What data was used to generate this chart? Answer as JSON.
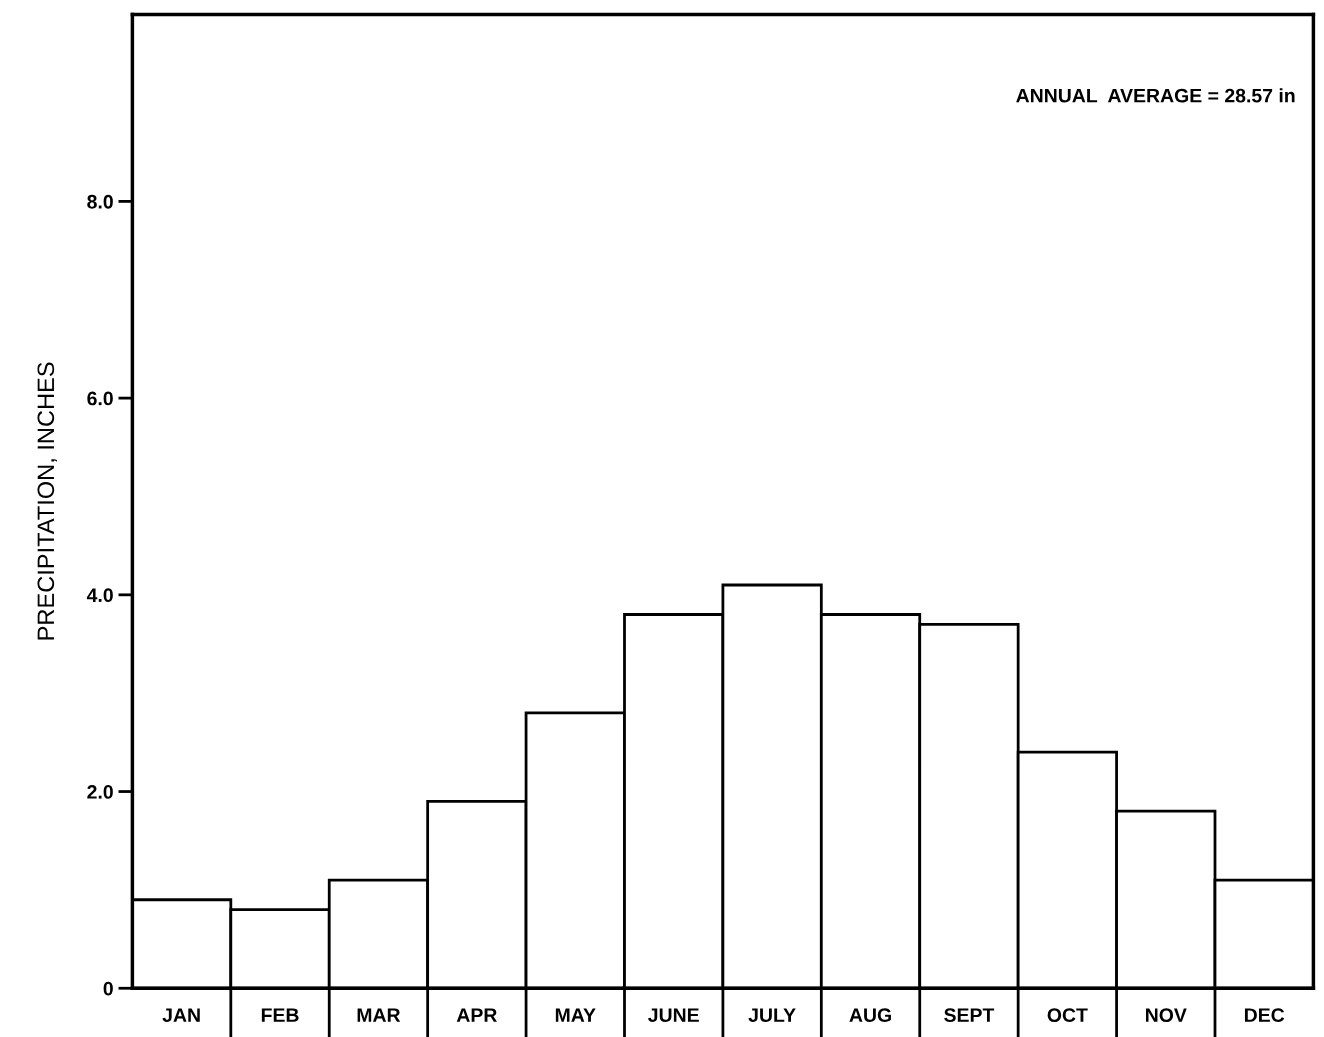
{
  "chart_data": {
    "type": "bar",
    "ylabel": "PRECIPITATION, INCHES",
    "categories": [
      "JAN",
      "FEB",
      "MAR",
      "APR",
      "MAY",
      "JUNE",
      "JULY",
      "AUG",
      "SEPT",
      "OCT",
      "NOV",
      "DEC"
    ],
    "values": [
      0.9,
      0.8,
      1.1,
      1.9,
      2.8,
      3.8,
      4.1,
      3.8,
      3.7,
      2.4,
      1.8,
      1.1
    ],
    "color": "#ffffff",
    "ylim": [
      0,
      9.9
    ],
    "yticks": [
      0,
      {
        "value": 2,
        "label": "2.0"
      },
      {
        "value": 4,
        "label": "4.0"
      },
      {
        "value": 6,
        "label": "6.0"
      },
      {
        "value": 8,
        "label": "8.0"
      }
    ],
    "annotations": [
      "ANNUAL  AVERAGE = 28.57 in"
    ],
    "grid": false
  }
}
